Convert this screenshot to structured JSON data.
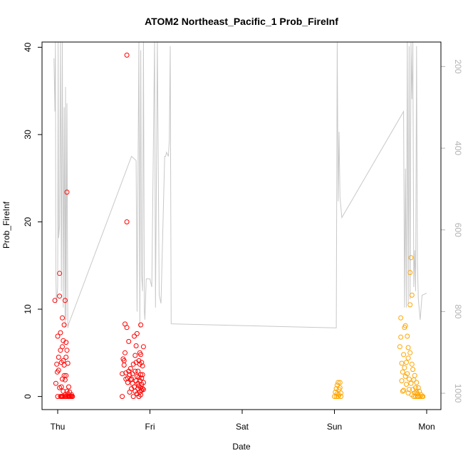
{
  "chart_data": {
    "type": "scatter",
    "title": "ATOM2 Northeast_Pacific_1 Prob_FireInf",
    "xlabel": "Date",
    "ylabel": "Prob_FireInf",
    "x_ticks": [
      "Thu",
      "Fri",
      "Sat",
      "Sun",
      "Mon"
    ],
    "xlim": [
      0,
      4.05
    ],
    "ylim": [
      -1.5,
      40.6
    ],
    "y_ticks": [
      0,
      10,
      20,
      30,
      40
    ],
    "y2_ticks": [
      200,
      400,
      600,
      800,
      1000
    ],
    "y2lim": [
      1040,
      140
    ],
    "y2_reversed": true,
    "grid": false,
    "legend": "none",
    "colors": {
      "early": "#ff0000",
      "late": "#ffa500",
      "altitude_line": "#c8c8c8",
      "axis": "#000000",
      "y2_axis": "#b3b3b3"
    },
    "series": [
      {
        "color": "#ff0000",
        "points": [
          [
            -0.03,
            11.0
          ],
          [
            -0.02,
            1.5
          ],
          [
            -0.01,
            3.7
          ],
          [
            -0.005,
            2.8
          ],
          [
            0.0,
            0.0
          ],
          [
            0.0,
            6.9
          ],
          [
            0.01,
            4.5
          ],
          [
            0.01,
            3.0
          ],
          [
            0.02,
            14.1
          ],
          [
            0.02,
            1.0
          ],
          [
            0.02,
            11.5
          ],
          [
            0.03,
            0.0
          ],
          [
            0.03,
            7.3
          ],
          [
            0.03,
            5.3
          ],
          [
            0.04,
            3.9
          ],
          [
            0.04,
            0.0
          ],
          [
            0.04,
            1.1
          ],
          [
            0.05,
            9.0
          ],
          [
            0.05,
            5.7
          ],
          [
            0.05,
            0.0
          ],
          [
            0.05,
            2.0
          ],
          [
            0.06,
            4.1
          ],
          [
            0.06,
            6.4
          ],
          [
            0.06,
            0.0
          ],
          [
            0.06,
            0.6
          ],
          [
            0.07,
            8.2
          ],
          [
            0.07,
            2.4
          ],
          [
            0.07,
            3.6
          ],
          [
            0.08,
            11.0
          ],
          [
            0.08,
            0.0
          ],
          [
            0.08,
            1.9
          ],
          [
            0.08,
            0.2
          ],
          [
            0.09,
            6.2
          ],
          [
            0.09,
            4.5
          ],
          [
            0.09,
            0.0
          ],
          [
            0.09,
            2.4
          ],
          [
            0.1,
            23.4
          ],
          [
            0.1,
            0.6
          ],
          [
            0.1,
            5.3
          ],
          [
            0.11,
            0.0
          ],
          [
            0.11,
            3.8
          ],
          [
            0.11,
            0.3
          ],
          [
            0.12,
            0.0
          ],
          [
            0.12,
            1.1
          ],
          [
            0.13,
            0.0
          ],
          [
            0.13,
            0.5
          ],
          [
            0.14,
            0.0
          ],
          [
            0.15,
            0.2
          ],
          [
            0.15,
            0.0
          ],
          [
            0.16,
            0.0
          ],
          [
            0.7,
            0.0
          ],
          [
            0.7,
            2.6
          ],
          [
            0.71,
            4.3
          ],
          [
            0.72,
            4.1
          ],
          [
            0.72,
            3.6
          ],
          [
            0.73,
            5.0
          ],
          [
            0.73,
            8.3
          ],
          [
            0.74,
            2.0
          ],
          [
            0.74,
            2.7
          ],
          [
            0.75,
            7.9
          ],
          [
            0.75,
            20.0
          ],
          [
            0.75,
            39.1
          ],
          [
            0.76,
            1.6
          ],
          [
            0.76,
            2.1
          ],
          [
            0.77,
            2.9
          ],
          [
            0.77,
            6.3
          ],
          [
            0.78,
            2.5
          ],
          [
            0.78,
            0.5
          ],
          [
            0.79,
            3.2
          ],
          [
            0.79,
            1.9
          ],
          [
            0.8,
            0.9
          ],
          [
            0.8,
            2.0
          ],
          [
            0.81,
            1.5
          ],
          [
            0.81,
            2.6
          ],
          [
            0.82,
            3.7
          ],
          [
            0.82,
            0.0
          ],
          [
            0.83,
            6.9
          ],
          [
            0.83,
            1.1
          ],
          [
            0.84,
            4.7
          ],
          [
            0.84,
            2.9
          ],
          [
            0.84,
            0.6
          ],
          [
            0.85,
            1.8
          ],
          [
            0.85,
            5.8
          ],
          [
            0.85,
            3.9
          ],
          [
            0.86,
            2.3
          ],
          [
            0.86,
            0.3
          ],
          [
            0.86,
            7.2
          ],
          [
            0.87,
            1.5
          ],
          [
            0.87,
            2.9
          ],
          [
            0.87,
            0.9
          ],
          [
            0.88,
            4.1
          ],
          [
            0.88,
            1.2
          ],
          [
            0.88,
            2.2
          ],
          [
            0.88,
            0.0
          ],
          [
            0.89,
            3.7
          ],
          [
            0.89,
            5.0
          ],
          [
            0.89,
            0.5
          ],
          [
            0.89,
            1.8
          ],
          [
            0.9,
            2.5
          ],
          [
            0.9,
            4.8
          ],
          [
            0.9,
            1.0
          ],
          [
            0.9,
            0.2
          ],
          [
            0.9,
            8.2
          ],
          [
            0.91,
            3.9
          ],
          [
            0.91,
            0.7
          ],
          [
            0.91,
            2.1
          ],
          [
            0.91,
            1.4
          ],
          [
            0.92,
            3.5
          ],
          [
            0.92,
            0.9
          ],
          [
            0.92,
            2.5
          ],
          [
            0.93,
            5.7
          ],
          [
            0.93,
            1.6
          ],
          [
            0.93,
            0.8
          ]
        ]
      },
      {
        "color": "#ffa500",
        "points": [
          [
            3.0,
            0.0
          ],
          [
            3.01,
            0.5
          ],
          [
            3.02,
            0.9
          ],
          [
            3.02,
            0.0
          ],
          [
            3.03,
            1.3
          ],
          [
            3.03,
            0.3
          ],
          [
            3.04,
            0.0
          ],
          [
            3.04,
            1.6
          ],
          [
            3.05,
            0.8
          ],
          [
            3.05,
            0.2
          ],
          [
            3.06,
            1.6
          ],
          [
            3.06,
            1.0
          ],
          [
            3.07,
            0.0
          ],
          [
            3.07,
            0.4
          ],
          [
            3.71,
            5.7
          ],
          [
            3.72,
            6.8
          ],
          [
            3.72,
            9.0
          ],
          [
            3.73,
            3.8
          ],
          [
            3.73,
            1.8
          ],
          [
            3.74,
            0.6
          ],
          [
            3.74,
            2.8
          ],
          [
            3.75,
            4.8
          ],
          [
            3.75,
            0.7
          ],
          [
            3.76,
            3.3
          ],
          [
            3.76,
            7.9
          ],
          [
            3.77,
            8.1
          ],
          [
            3.77,
            2.3
          ],
          [
            3.78,
            1.4
          ],
          [
            3.78,
            3.9
          ],
          [
            3.79,
            2.6
          ],
          [
            3.79,
            6.9
          ],
          [
            3.8,
            0.4
          ],
          [
            3.8,
            4.4
          ],
          [
            3.8,
            5.6
          ],
          [
            3.81,
            0.8
          ],
          [
            3.81,
            2.0
          ],
          [
            3.82,
            5.0
          ],
          [
            3.82,
            10.5
          ],
          [
            3.82,
            14.2
          ],
          [
            3.83,
            15.9
          ],
          [
            3.83,
            1.5
          ],
          [
            3.84,
            3.7
          ],
          [
            3.84,
            0.2
          ],
          [
            3.84,
            11.6
          ],
          [
            3.85,
            3.1
          ],
          [
            3.85,
            0.8
          ],
          [
            3.86,
            0.0
          ],
          [
            3.86,
            1.9
          ],
          [
            3.87,
            0.4
          ],
          [
            3.87,
            2.4
          ],
          [
            3.88,
            0.0
          ],
          [
            3.88,
            1.0
          ],
          [
            3.89,
            0.5
          ],
          [
            3.89,
            1.6
          ],
          [
            3.9,
            0.0
          ],
          [
            3.9,
            0.3
          ],
          [
            3.91,
            1.0
          ],
          [
            3.91,
            0.0
          ],
          [
            3.92,
            0.6
          ],
          [
            3.93,
            0.0
          ],
          [
            3.94,
            0.2
          ],
          [
            3.95,
            0.0
          ],
          [
            3.96,
            0.0
          ]
        ]
      }
    ],
    "altitude_line": [
      [
        -0.04,
        180
      ],
      [
        -0.03,
        310
      ],
      [
        -0.025,
        140
      ],
      [
        -0.02,
        700
      ],
      [
        -0.015,
        780
      ],
      [
        0.0,
        740
      ],
      [
        0.005,
        140
      ],
      [
        0.01,
        620
      ],
      [
        0.02,
        590
      ],
      [
        0.03,
        140
      ],
      [
        0.04,
        750
      ],
      [
        0.05,
        140
      ],
      [
        0.06,
        790
      ],
      [
        0.07,
        300
      ],
      [
        0.08,
        840
      ],
      [
        0.085,
        250
      ],
      [
        0.09,
        820
      ],
      [
        0.1,
        290
      ],
      [
        0.11,
        840
      ],
      [
        0.12,
        830
      ],
      [
        0.8,
        420
      ],
      [
        0.85,
        430
      ],
      [
        0.86,
        800
      ],
      [
        0.88,
        140
      ],
      [
        0.89,
        840
      ],
      [
        0.9,
        160
      ],
      [
        0.91,
        710
      ],
      [
        0.92,
        750
      ],
      [
        0.93,
        140
      ],
      [
        0.94,
        800
      ],
      [
        0.945,
        820
      ],
      [
        0.96,
        720
      ],
      [
        1.0,
        720
      ],
      [
        1.02,
        740
      ],
      [
        1.05,
        140
      ],
      [
        1.06,
        790
      ],
      [
        1.08,
        140
      ],
      [
        1.1,
        760
      ],
      [
        1.12,
        780
      ],
      [
        1.16,
        420
      ],
      [
        1.17,
        420
      ],
      [
        1.18,
        410
      ],
      [
        1.2,
        420
      ],
      [
        1.21,
        380
      ],
      [
        1.22,
        150
      ],
      [
        1.23,
        830
      ],
      [
        3.0,
        840
      ],
      [
        3.02,
        840
      ],
      [
        3.03,
        140
      ],
      [
        3.04,
        530
      ],
      [
        3.05,
        360
      ],
      [
        3.06,
        520
      ],
      [
        3.08,
        570
      ],
      [
        3.75,
        310
      ],
      [
        3.76,
        790
      ],
      [
        3.77,
        450
      ],
      [
        3.78,
        790
      ],
      [
        3.79,
        140
      ],
      [
        3.8,
        780
      ],
      [
        3.81,
        150
      ],
      [
        3.82,
        770
      ],
      [
        3.83,
        140
      ],
      [
        3.84,
        280
      ],
      [
        3.85,
        140
      ],
      [
        3.86,
        740
      ],
      [
        3.87,
        650
      ],
      [
        3.88,
        750
      ],
      [
        3.89,
        150
      ],
      [
        3.9,
        680
      ],
      [
        3.91,
        770
      ],
      [
        3.93,
        820
      ],
      [
        3.95,
        760
      ],
      [
        4.0,
        755
      ]
    ]
  }
}
